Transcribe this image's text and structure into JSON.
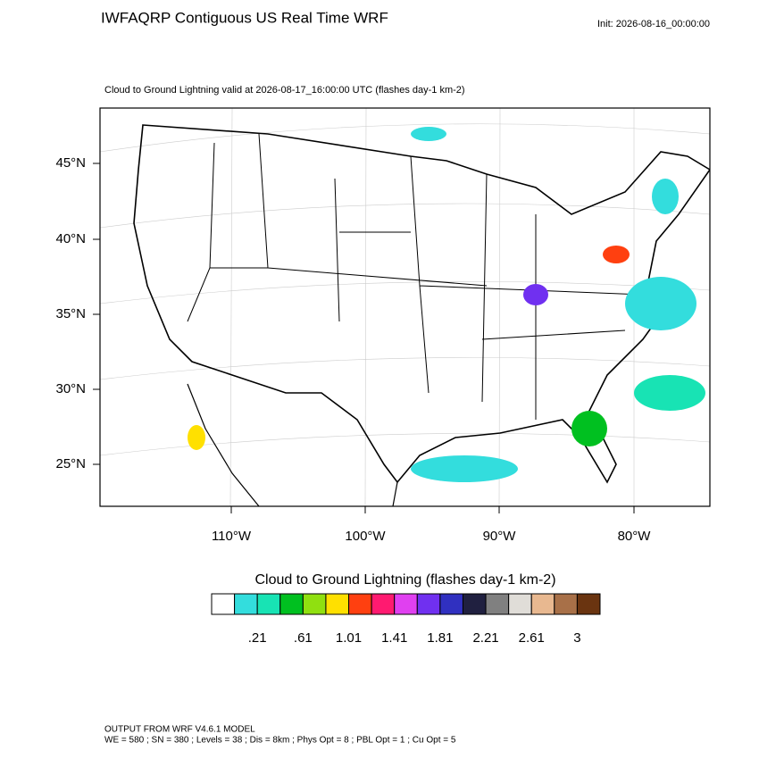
{
  "header": {
    "title": "IWFAQRP Contiguous US Real Time WRF",
    "init": "Init: 2026-08-16_00:00:00",
    "subtitle": "Cloud to Ground Lightning valid at 2026-08-17_16:00:00 UTC   (flashes day-1 km-2)"
  },
  "map": {
    "lat_labels": [
      "45°N",
      "40°N",
      "35°N",
      "30°N",
      "25°N"
    ],
    "lon_labels": [
      "110°W",
      "100°W",
      "90°W",
      "80°W"
    ]
  },
  "colorbar": {
    "title": "Cloud to Ground Lightning  (flashes day-1 km-2)",
    "colors": [
      "#ffffff",
      "#33dddd",
      "#18e3b4",
      "#00c020",
      "#90e010",
      "#ffe000",
      "#ff4010",
      "#ff1a70",
      "#e040f0",
      "#7030f0",
      "#3030c0",
      "#202040",
      "#808080",
      "#e0ddd8",
      "#e8b890",
      "#a87048",
      "#6a3410"
    ],
    "labels": [
      ".21",
      ".61",
      "1.01",
      "1.41",
      "1.81",
      "2.21",
      "2.61",
      "3"
    ]
  },
  "footer": {
    "line1": "OUTPUT FROM WRF V4.6.1 MODEL",
    "line2": "WE = 580 ; SN = 380 ; Levels = 38 ; Dis = 8km ; Phys Opt = 8 ; PBL Opt = 1 ; Cu Opt = 5"
  }
}
